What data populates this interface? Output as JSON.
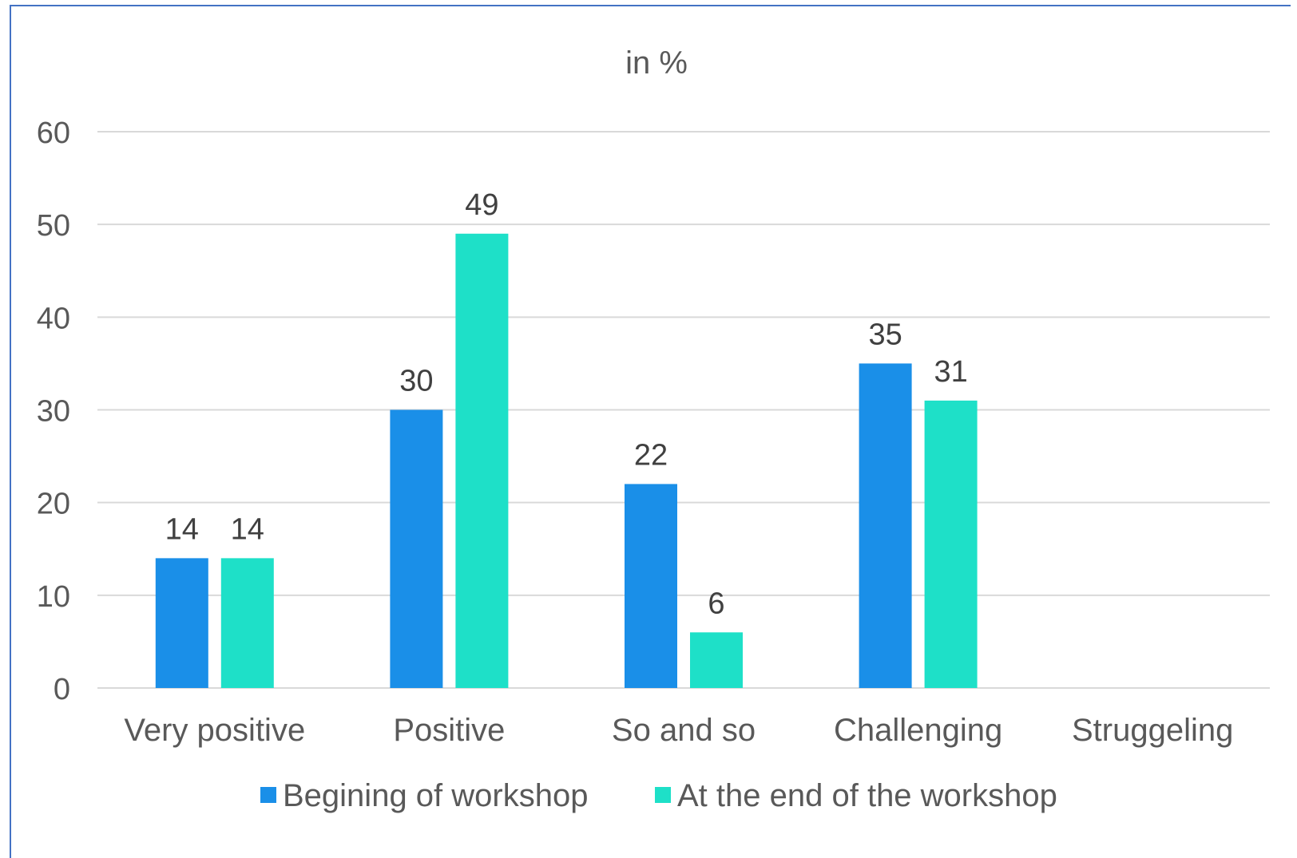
{
  "chart_data": {
    "type": "bar",
    "title": "in %",
    "categories": [
      "Very positive",
      "Positive",
      "So and so",
      "Challenging",
      "Struggeling"
    ],
    "series": [
      {
        "name": "Begining of workshop",
        "color": "#1a8fe8",
        "values": [
          14,
          30,
          22,
          35,
          null
        ]
      },
      {
        "name": "At the end of the workshop",
        "color": "#1ee0c8",
        "values": [
          14,
          49,
          6,
          31,
          null
        ]
      }
    ],
    "y_ticks": [
      0,
      10,
      20,
      30,
      40,
      50,
      60
    ],
    "ylim": [
      0,
      60
    ],
    "grid": true,
    "legend_position": "bottom"
  }
}
